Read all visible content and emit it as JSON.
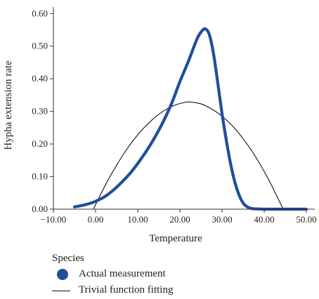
{
  "chart_data": {
    "type": "line",
    "xlabel": "Temperature",
    "ylabel": "Hypha extension rate",
    "xlim": [
      -10,
      52
    ],
    "ylim": [
      0,
      0.62
    ],
    "xticks": [
      -10,
      0,
      10,
      20,
      30,
      40,
      50
    ],
    "xtick_labels": [
      "−10.00",
      "0.00",
      "10.00",
      "20.00",
      "30.00",
      "40.00",
      "50.00"
    ],
    "yticks": [
      0,
      0.1,
      0.2,
      0.3,
      0.4,
      0.5,
      0.6
    ],
    "ytick_labels": [
      "0.00",
      "0.10",
      "0.20",
      "0.30",
      "0.40",
      "0.50",
      "0.60"
    ],
    "grid": false,
    "legend_position": "bottom-left",
    "legend_title": "Species",
    "series": [
      {
        "name": "Actual measurement",
        "style": "thick",
        "color": "#1f4e9c",
        "x": [
          -5,
          -3,
          -1,
          0,
          2,
          4,
          6,
          8,
          10,
          12,
          14,
          16,
          18,
          20,
          22,
          24,
          25,
          26,
          27,
          28,
          29,
          30,
          31,
          32,
          33,
          34,
          35,
          36,
          37,
          38,
          40,
          45,
          50
        ],
        "y": [
          0.007,
          0.012,
          0.019,
          0.024,
          0.037,
          0.056,
          0.08,
          0.107,
          0.14,
          0.177,
          0.219,
          0.267,
          0.323,
          0.391,
          0.453,
          0.52,
          0.543,
          0.553,
          0.535,
          0.475,
          0.386,
          0.293,
          0.212,
          0.141,
          0.085,
          0.045,
          0.019,
          0.007,
          0.002,
          0.001,
          0.0,
          0.0,
          0.0
        ]
      },
      {
        "name": "Trivial function fitting",
        "style": "thin",
        "color": "#111111",
        "x": [
          -0.5,
          1,
          3,
          5,
          7,
          9,
          11,
          13,
          15,
          17,
          19,
          21,
          22,
          23,
          25,
          27,
          29,
          31,
          33,
          35,
          37,
          39,
          41,
          43,
          44.5
        ],
        "y": [
          0.0,
          0.04,
          0.09,
          0.135,
          0.176,
          0.212,
          0.243,
          0.269,
          0.291,
          0.308,
          0.32,
          0.327,
          0.329,
          0.328,
          0.323,
          0.311,
          0.295,
          0.274,
          0.248,
          0.216,
          0.18,
          0.138,
          0.092,
          0.04,
          0.0
        ]
      }
    ]
  }
}
